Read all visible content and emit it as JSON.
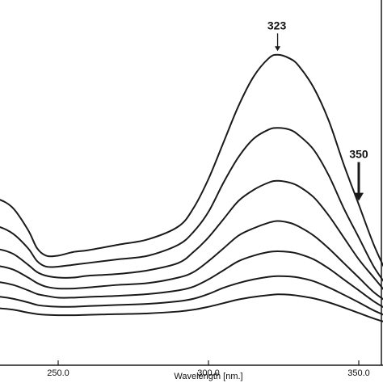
{
  "chart_data": {
    "type": "line",
    "title": "",
    "xlabel": "Wavelength [nm.]",
    "ylabel": "",
    "xlim": [
      215,
      362
    ],
    "ylim": [
      0,
      1
    ],
    "x_ticks": [
      {
        "value": 250,
        "label": "250.0"
      },
      {
        "value": 300,
        "label": "300.0"
      },
      {
        "value": 350,
        "label": "350.0"
      }
    ],
    "grid": false,
    "legend": "none",
    "line_color": "#1a1a1a",
    "series": [
      {
        "x": [
          215,
          220,
          225,
          230,
          235,
          240,
          243,
          246,
          250,
          255,
          260,
          270,
          280,
          290,
          295,
          300,
          305,
          310,
          315,
          320,
          323,
          327,
          330,
          335,
          340,
          345,
          350,
          355,
          360
        ],
        "y": [
          0.43,
          0.45,
          0.46,
          0.455,
          0.43,
          0.37,
          0.32,
          0.3,
          0.3,
          0.31,
          0.315,
          0.33,
          0.345,
          0.38,
          0.43,
          0.51,
          0.61,
          0.71,
          0.79,
          0.84,
          0.85,
          0.84,
          0.82,
          0.76,
          0.67,
          0.55,
          0.44,
          0.33,
          0.24
        ]
      },
      {
        "x": [
          215,
          220,
          225,
          230,
          235,
          240,
          243,
          246,
          250,
          255,
          260,
          270,
          280,
          290,
          295,
          300,
          305,
          310,
          315,
          320,
          323,
          327,
          330,
          335,
          340,
          345,
          350,
          355,
          360
        ],
        "y": [
          0.36,
          0.375,
          0.385,
          0.38,
          0.36,
          0.32,
          0.285,
          0.27,
          0.27,
          0.275,
          0.28,
          0.29,
          0.3,
          0.33,
          0.365,
          0.42,
          0.5,
          0.57,
          0.62,
          0.645,
          0.65,
          0.645,
          0.63,
          0.59,
          0.52,
          0.43,
          0.35,
          0.27,
          0.21
        ]
      },
      {
        "x": [
          215,
          220,
          225,
          230,
          235,
          240,
          243,
          246,
          250,
          255,
          260,
          270,
          280,
          290,
          295,
          300,
          305,
          310,
          315,
          320,
          323,
          327,
          330,
          335,
          340,
          345,
          350,
          355,
          360
        ],
        "y": [
          0.3,
          0.315,
          0.32,
          0.318,
          0.305,
          0.275,
          0.255,
          0.245,
          0.24,
          0.24,
          0.245,
          0.25,
          0.26,
          0.28,
          0.31,
          0.35,
          0.4,
          0.45,
          0.48,
          0.5,
          0.505,
          0.5,
          0.49,
          0.46,
          0.41,
          0.35,
          0.29,
          0.24,
          0.19
        ]
      },
      {
        "x": [
          215,
          220,
          225,
          230,
          235,
          240,
          243,
          246,
          250,
          255,
          260,
          270,
          280,
          290,
          295,
          300,
          305,
          310,
          315,
          320,
          323,
          327,
          330,
          335,
          340,
          345,
          350,
          355,
          360
        ],
        "y": [
          0.26,
          0.27,
          0.275,
          0.272,
          0.262,
          0.24,
          0.225,
          0.215,
          0.21,
          0.21,
          0.213,
          0.22,
          0.225,
          0.24,
          0.255,
          0.285,
          0.32,
          0.355,
          0.375,
          0.39,
          0.395,
          0.39,
          0.38,
          0.355,
          0.32,
          0.28,
          0.24,
          0.2,
          0.17
        ]
      },
      {
        "x": [
          215,
          220,
          225,
          230,
          235,
          240,
          243,
          246,
          250,
          255,
          260,
          270,
          280,
          290,
          295,
          300,
          305,
          310,
          315,
          320,
          323,
          327,
          330,
          335,
          340,
          345,
          350,
          355,
          360
        ],
        "y": [
          0.22,
          0.225,
          0.23,
          0.228,
          0.22,
          0.205,
          0.195,
          0.19,
          0.185,
          0.185,
          0.187,
          0.19,
          0.195,
          0.205,
          0.215,
          0.235,
          0.26,
          0.285,
          0.3,
          0.31,
          0.312,
          0.31,
          0.305,
          0.29,
          0.265,
          0.235,
          0.205,
          0.175,
          0.15
        ]
      },
      {
        "x": [
          215,
          220,
          225,
          230,
          235,
          240,
          243,
          246,
          250,
          255,
          260,
          270,
          280,
          290,
          295,
          300,
          305,
          310,
          315,
          320,
          323,
          327,
          330,
          335,
          340,
          345,
          350,
          355,
          360
        ],
        "y": [
          0.18,
          0.185,
          0.19,
          0.188,
          0.182,
          0.172,
          0.165,
          0.162,
          0.16,
          0.16,
          0.162,
          0.165,
          0.168,
          0.175,
          0.182,
          0.195,
          0.212,
          0.225,
          0.235,
          0.242,
          0.244,
          0.243,
          0.24,
          0.23,
          0.213,
          0.193,
          0.172,
          0.15,
          0.132
        ]
      },
      {
        "x": [
          215,
          220,
          225,
          230,
          235,
          240,
          243,
          246,
          250,
          255,
          260,
          270,
          280,
          290,
          295,
          300,
          305,
          310,
          315,
          320,
          323,
          327,
          330,
          335,
          340,
          345,
          350,
          355,
          360
        ],
        "y": [
          0.15,
          0.155,
          0.158,
          0.156,
          0.152,
          0.144,
          0.14,
          0.138,
          0.137,
          0.137,
          0.138,
          0.14,
          0.142,
          0.147,
          0.152,
          0.16,
          0.17,
          0.18,
          0.187,
          0.192,
          0.194,
          0.193,
          0.19,
          0.183,
          0.172,
          0.158,
          0.143,
          0.128,
          0.115
        ]
      }
    ],
    "annotations": [
      {
        "label": "323",
        "x": 323,
        "y_arrow_tip": 0.86,
        "arrow": "thin"
      },
      {
        "label": "350",
        "x": 350,
        "y_arrow_tip": 0.45,
        "arrow": "bold"
      }
    ]
  }
}
